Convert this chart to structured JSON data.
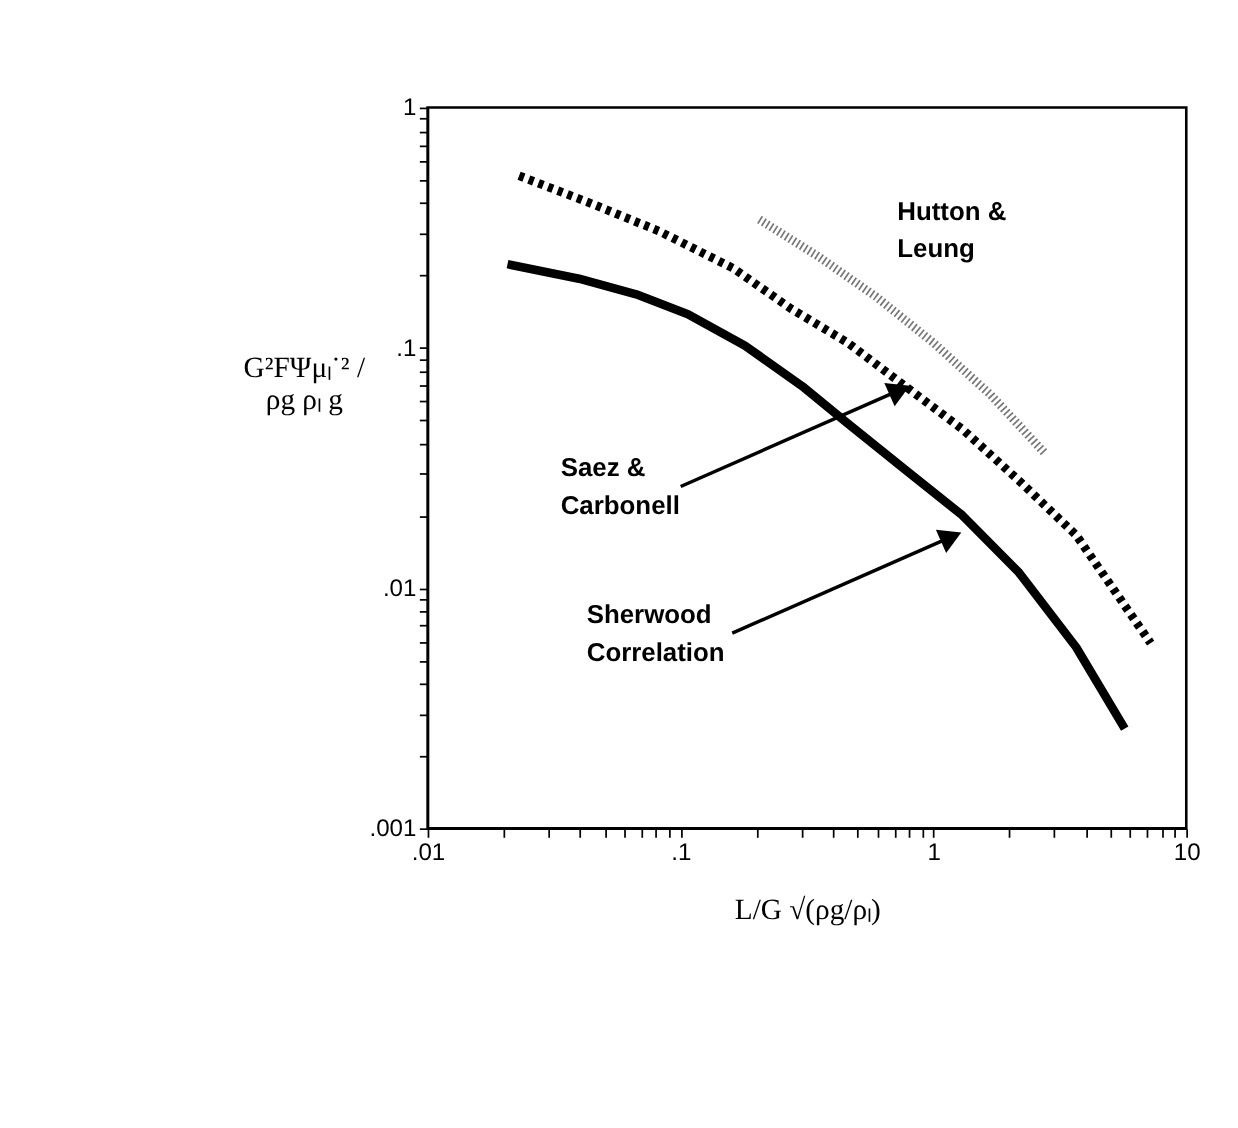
{
  "chart_data": {
    "type": "line",
    "xlabel": "L/G √(ρg/ρₗ)",
    "ylabel": "G²FΨμₗ˙² / ρg ρₗ g",
    "log": "xy",
    "grid": false,
    "legend": false,
    "marker": "none",
    "xlim": [
      0.01,
      10
    ],
    "ylim": [
      0.001,
      1
    ],
    "xticks": [
      {
        "value": 0.01,
        "label": ".01"
      },
      {
        "value": 0.02,
        "label": null
      },
      {
        "value": 0.03,
        "label": null
      },
      {
        "value": 0.04,
        "label": null
      },
      {
        "value": 0.05,
        "label": null
      },
      {
        "value": 0.06,
        "label": null
      },
      {
        "value": 0.07,
        "label": null
      },
      {
        "value": 0.08,
        "label": null
      },
      {
        "value": 0.09,
        "label": null
      },
      {
        "value": 0.1,
        "label": ".1"
      },
      {
        "value": 0.2,
        "label": null
      },
      {
        "value": 0.3,
        "label": null
      },
      {
        "value": 0.4,
        "label": null
      },
      {
        "value": 0.5,
        "label": null
      },
      {
        "value": 0.6,
        "label": null
      },
      {
        "value": 0.7,
        "label": null
      },
      {
        "value": 0.8,
        "label": null
      },
      {
        "value": 0.9,
        "label": null
      },
      1,
      {
        "value": 2,
        "label": null
      },
      {
        "value": 3,
        "label": null
      },
      {
        "value": 4,
        "label": null
      },
      {
        "value": 5,
        "label": null
      },
      {
        "value": 6,
        "label": null
      },
      {
        "value": 7,
        "label": null
      },
      {
        "value": 8,
        "label": null
      },
      {
        "value": 9,
        "label": null
      },
      10
    ],
    "yticks": [
      {
        "value": 0.001,
        "label": ".001"
      },
      {
        "value": 0.002,
        "label": null
      },
      {
        "value": 0.003,
        "label": null
      },
      {
        "value": 0.004,
        "label": null
      },
      {
        "value": 0.005,
        "label": null
      },
      {
        "value": 0.006,
        "label": null
      },
      {
        "value": 0.007,
        "label": null
      },
      {
        "value": 0.008,
        "label": null
      },
      {
        "value": 0.009,
        "label": null
      },
      {
        "value": 0.01,
        "label": ".01"
      },
      {
        "value": 0.02,
        "label": null
      },
      {
        "value": 0.03,
        "label": null
      },
      {
        "value": 0.04,
        "label": null
      },
      {
        "value": 0.05,
        "label": null
      },
      {
        "value": 0.06,
        "label": null
      },
      {
        "value": 0.07,
        "label": null
      },
      {
        "value": 0.08,
        "label": null
      },
      {
        "value": 0.09,
        "label": null
      },
      {
        "value": 0.1,
        "label": ".1"
      },
      {
        "value": 0.2,
        "label": null
      },
      {
        "value": 0.3,
        "label": null
      },
      {
        "value": 0.4,
        "label": null
      },
      {
        "value": 0.5,
        "label": null
      },
      {
        "value": 0.6,
        "label": null
      },
      {
        "value": 0.7,
        "label": null
      },
      {
        "value": 0.8,
        "label": null
      },
      {
        "value": 0.9,
        "label": null
      },
      1
    ],
    "series": [
      {
        "color": "#000000",
        "line_style": "solid",
        "x": [
          0.0207,
          0.0397,
          0.0668,
          0.107,
          0.18,
          0.302,
          0.458,
          0.771,
          1.3,
          2.18,
          3.67,
          5.71
        ],
        "values": [
          0.223,
          0.194,
          0.167,
          0.138,
          0.102,
          0.0694,
          0.0485,
          0.0312,
          0.0201,
          0.0116,
          0.00567,
          0.0026
        ]
      },
      {
        "color": "#000000",
        "line_style": "dashed",
        "x": [
          0.023,
          0.044,
          0.0822,
          0.162,
          0.272,
          0.458,
          0.771,
          1.3,
          2.18,
          3.67,
          7.23
        ],
        "values": [
          0.52,
          0.4,
          0.306,
          0.214,
          0.146,
          0.105,
          0.0694,
          0.0459,
          0.028,
          0.0166,
          0.0059
        ]
      },
      {
        "name": "Hutton & Leung",
        "color": "#777777",
        "line_style": "dotted",
        "x": [
          0.205,
          0.353,
          0.594,
          1.0,
          1.68,
          2.76
        ],
        "values": [
          0.342,
          0.239,
          0.163,
          0.105,
          0.0639,
          0.0364
        ]
      }
    ],
    "annotations": [
      {
        "text": "Saez & Carbonell",
        "x": 0.713,
        "y": 0.0657
      },
      {
        "text": "Sherwood Correlation",
        "x": 1.14,
        "y": 0.0161
      }
    ]
  }
}
